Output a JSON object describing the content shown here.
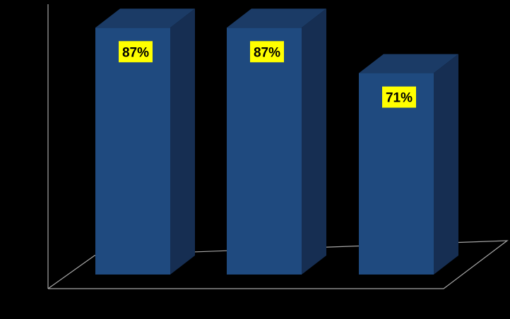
{
  "chart_data": {
    "type": "bar",
    "three_d": true,
    "categories": [
      "",
      "",
      ""
    ],
    "values": [
      87,
      87,
      71
    ],
    "data_labels": [
      "87%",
      "87%",
      "71%"
    ],
    "ylim": [
      0,
      100
    ],
    "title": "",
    "xlabel": "",
    "ylabel": "",
    "grid": false,
    "legend": "none"
  },
  "colors": {
    "background": "#000000",
    "bar_front": "#1f4a7f",
    "bar_side": "#162e52",
    "bar_top": "#1b3b66",
    "axis": "#a6a6a6",
    "label_background": "#ffff00",
    "label_text": "#000000"
  }
}
